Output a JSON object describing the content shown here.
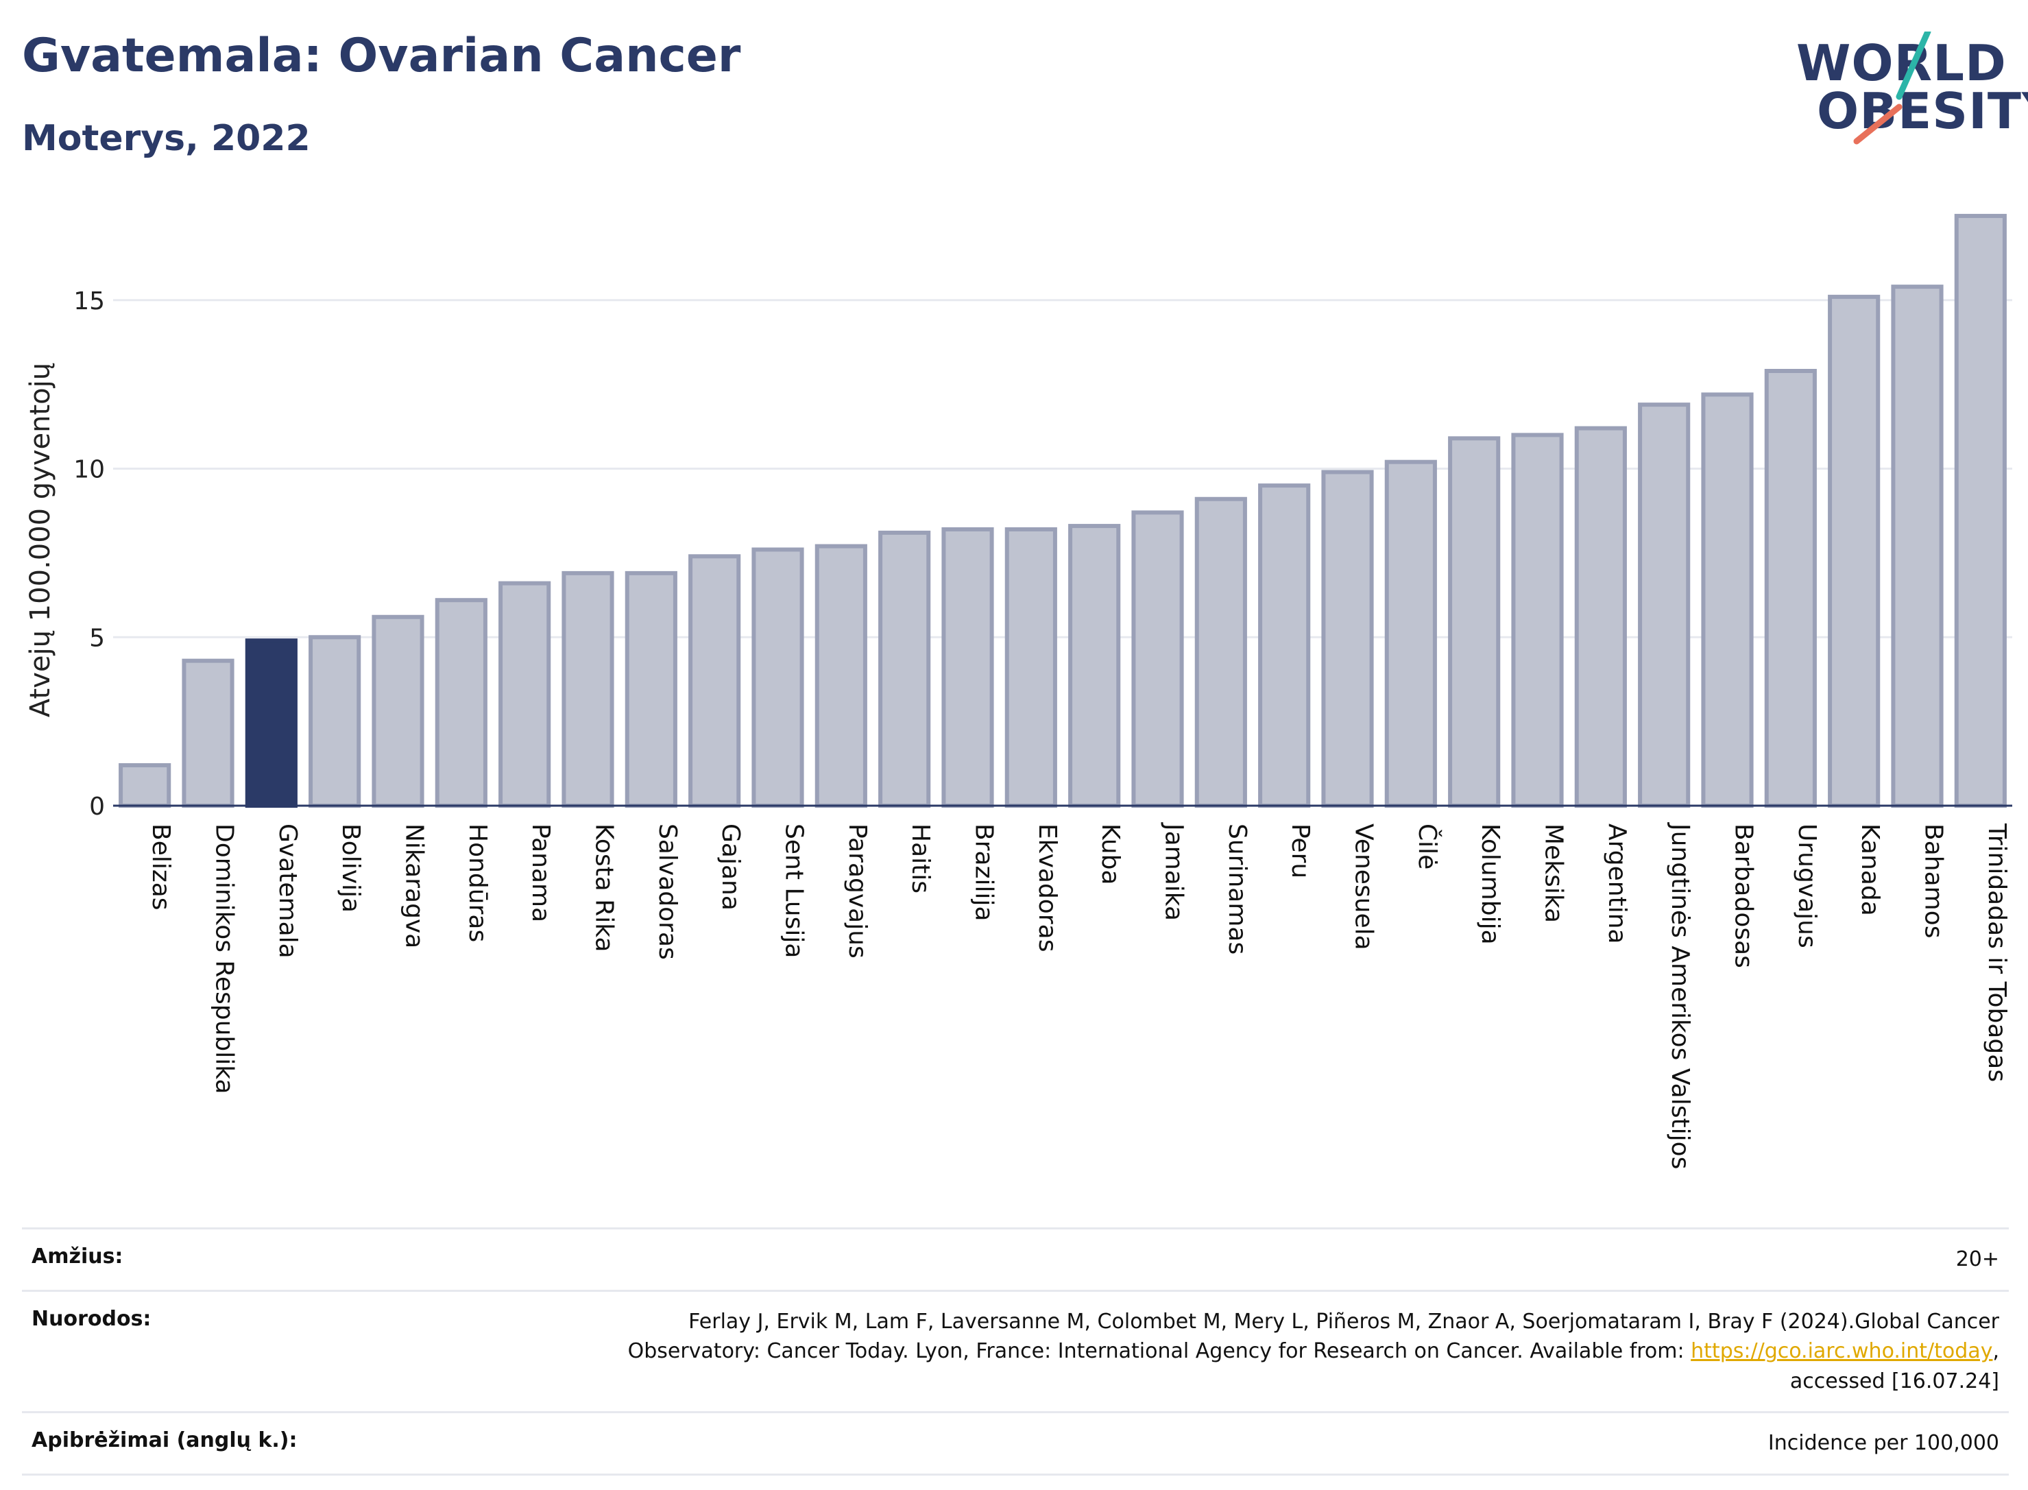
{
  "header": {
    "title": "Gvatemala: Ovarian Cancer",
    "subtitle": "Moterys, 2022"
  },
  "logo": {
    "line1": "WORLD",
    "line2": "OBESITY"
  },
  "chart_data": {
    "type": "bar",
    "ylabel": "Atvejų 100.000 gyventojų",
    "ylim": [
      0,
      17.6
    ],
    "yticks": [
      0,
      5,
      10,
      15
    ],
    "grid": true,
    "highlight": "Gvatemala",
    "categories": [
      "Belizas",
      "Dominikos Respublika",
      "Gvatemala",
      "Bolivija",
      "Nikaragva",
      "Hondūras",
      "Panama",
      "Kosta Rika",
      "Salvadoras",
      "Gajana",
      "Sent Lusija",
      "Paragvajus",
      "Haitis",
      "Brazilija",
      "Ekvadoras",
      "Kuba",
      "Jamaika",
      "Surinamas",
      "Peru",
      "Venesuela",
      "Čilė",
      "Kolumbija",
      "Meksika",
      "Argentina",
      "Jungtinės Amerikos Valstijos",
      "Barbadosas",
      "Urugvajus",
      "Kanada",
      "Bahamos",
      "Trinidadas ir Tobagas"
    ],
    "values": [
      1.2,
      4.3,
      4.9,
      5.0,
      5.6,
      6.1,
      6.6,
      6.9,
      6.9,
      7.4,
      7.6,
      7.7,
      8.1,
      8.2,
      8.2,
      8.3,
      8.7,
      9.1,
      9.5,
      9.9,
      10.2,
      10.9,
      11.0,
      11.2,
      11.9,
      12.2,
      12.9,
      15.1,
      15.4,
      17.5
    ],
    "colors": {
      "bar": "#bfc3d0",
      "bar_border": "#9aa0b7",
      "highlight": "#2b3a67"
    }
  },
  "footer": {
    "rows": [
      {
        "label": "Amžius:",
        "value": "20+"
      },
      {
        "label": "Nuorodos:",
        "value_lines": [
          "Ferlay J, Ervik M, Lam F, Laversanne M, Colombet M, Mery L, Piñeros M, Znaor A, Soerjomataram I, Bray F (2024).Global Cancer",
          "Observatory: Cancer Today. Lyon, France: International Agency for Research on Cancer. Available from: ",
          "https://gco.iarc.who.int/today",
          ",",
          "accessed [16.07.24]"
        ]
      },
      {
        "label": "Apibrėžimai (anglų k.):",
        "value": "Incidence per 100,000"
      }
    ]
  }
}
